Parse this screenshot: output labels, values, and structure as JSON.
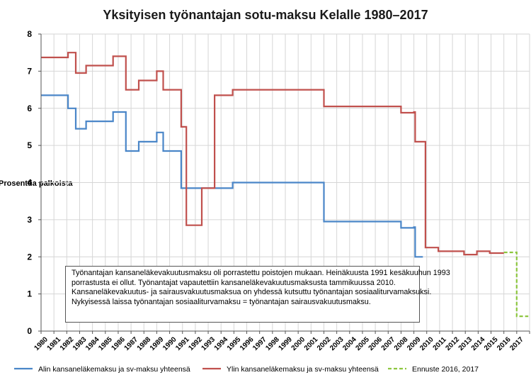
{
  "chart_data": {
    "type": "line",
    "step": true,
    "title": "Yksityisen työnantajan sotu-maksu Kelalle 1980–2017",
    "ylabel": "Prosenttia palkoista",
    "ylim": [
      0,
      8
    ],
    "yticks": [
      0,
      1,
      2,
      3,
      4,
      5,
      6,
      7,
      8
    ],
    "xlim": [
      1980,
      2018
    ],
    "xtick_labels": [
      "1980",
      "1981",
      "1982",
      "1983",
      "1984",
      "1985",
      "1986",
      "1987",
      "1988",
      "1989",
      "1990",
      "1991",
      "1992",
      "1993",
      "1994",
      "1995",
      "1996",
      "1997",
      "1998",
      "1999",
      "2000",
      "2001",
      "2002",
      "2003",
      "2004",
      "2005",
      "2006",
      "2007",
      "2008",
      "2009",
      "2010",
      "2011",
      "2012",
      "2013",
      "2014",
      "2015",
      "2016",
      "2017"
    ],
    "series": [
      {
        "name": "Alin kansaneläkemaksu ja sv-maksu yhteensä",
        "color": "#4a86c8",
        "dash": false,
        "points": [
          [
            1980,
            6.35
          ],
          [
            1982.1,
            6.35
          ],
          [
            1982.1,
            6.0
          ],
          [
            1982.7,
            6.0
          ],
          [
            1982.7,
            5.45
          ],
          [
            1983.5,
            5.45
          ],
          [
            1983.5,
            5.65
          ],
          [
            1985.6,
            5.65
          ],
          [
            1985.6,
            5.9
          ],
          [
            1986.6,
            5.9
          ],
          [
            1986.6,
            4.85
          ],
          [
            1987.6,
            4.85
          ],
          [
            1987.6,
            5.1
          ],
          [
            1989.0,
            5.1
          ],
          [
            1989.0,
            5.35
          ],
          [
            1989.5,
            5.35
          ],
          [
            1989.5,
            4.85
          ],
          [
            1990.9,
            4.85
          ],
          [
            1990.9,
            3.85
          ],
          [
            1991.3,
            3.85
          ],
          [
            1991.3,
            3.85
          ],
          [
            1994.0,
            3.85
          ],
          [
            1994.0,
            3.85
          ],
          [
            1994.9,
            3.85
          ],
          [
            1994.9,
            4.0
          ],
          [
            2002.0,
            4.0
          ],
          [
            2002.0,
            2.95
          ],
          [
            2008.0,
            2.95
          ],
          [
            2008.0,
            2.78
          ],
          [
            2009.0,
            2.78
          ],
          [
            2009.0,
            2.8
          ],
          [
            2009.1,
            2.8
          ],
          [
            2009.1,
            2.0
          ],
          [
            2009.7,
            2.0
          ]
        ]
      },
      {
        "name": "Ylin kansaneläkemaksu ja sv-maksu yhteensä",
        "color": "#c0504d",
        "dash": false,
        "points": [
          [
            1980,
            7.37
          ],
          [
            1982.1,
            7.37
          ],
          [
            1982.1,
            7.5
          ],
          [
            1982.7,
            7.5
          ],
          [
            1982.7,
            6.95
          ],
          [
            1983.5,
            6.95
          ],
          [
            1983.5,
            7.15
          ],
          [
            1985.6,
            7.15
          ],
          [
            1985.6,
            7.4
          ],
          [
            1986.6,
            7.4
          ],
          [
            1986.6,
            6.5
          ],
          [
            1987.6,
            6.5
          ],
          [
            1987.6,
            6.75
          ],
          [
            1989.0,
            6.75
          ],
          [
            1989.0,
            7.0
          ],
          [
            1989.5,
            7.0
          ],
          [
            1989.5,
            6.5
          ],
          [
            1990.9,
            6.5
          ],
          [
            1990.9,
            5.5
          ],
          [
            1991.3,
            5.5
          ],
          [
            1991.3,
            2.85
          ],
          [
            1992.5,
            2.85
          ],
          [
            1992.5,
            3.85
          ],
          [
            1993.5,
            3.85
          ],
          [
            1993.5,
            6.35
          ],
          [
            1994.9,
            6.35
          ],
          [
            1994.9,
            6.5
          ],
          [
            2002.0,
            6.5
          ],
          [
            2002.0,
            6.05
          ],
          [
            2008.0,
            6.05
          ],
          [
            2008.0,
            5.88
          ],
          [
            2009.0,
            5.88
          ],
          [
            2009.0,
            5.9
          ],
          [
            2009.1,
            5.9
          ],
          [
            2009.1,
            5.1
          ],
          [
            2009.9,
            5.1
          ],
          [
            2009.9,
            2.25
          ],
          [
            2010.9,
            2.25
          ],
          [
            2010.9,
            2.15
          ],
          [
            2012.9,
            2.15
          ],
          [
            2012.9,
            2.06
          ],
          [
            2013.9,
            2.06
          ],
          [
            2013.9,
            2.15
          ],
          [
            2014.9,
            2.15
          ],
          [
            2014.9,
            2.1
          ],
          [
            2016.0,
            2.1
          ]
        ]
      },
      {
        "name": "Ennuste 2016, 2017",
        "color": "#8dc63f",
        "dash": true,
        "points": [
          [
            2016.0,
            2.12
          ],
          [
            2017.0,
            2.12
          ],
          [
            2017.0,
            0.4
          ],
          [
            2017.9,
            0.4
          ]
        ]
      }
    ],
    "annotation": [
      "Työnantajan kansaneläkevakuutusmaksu oli porrastettu poistojen mukaan. Heinäkuusta 1991 kesäkuuhun 1993",
      "porrastusta ei ollut. Työnantajat vapautettiin kansaneläkevakuutusmaksusta tammikuussa 2010.",
      "Kansaneläkevakuutus- ja sairausvakuutusmaksua on yhdessä kutsuttu työnantajan sosiaaliturvamaksuksi.",
      "Nykyisessä laissa työnantajan sosiaaliturvamaksu = työnantajan sairausvakuutusmaksu."
    ]
  }
}
